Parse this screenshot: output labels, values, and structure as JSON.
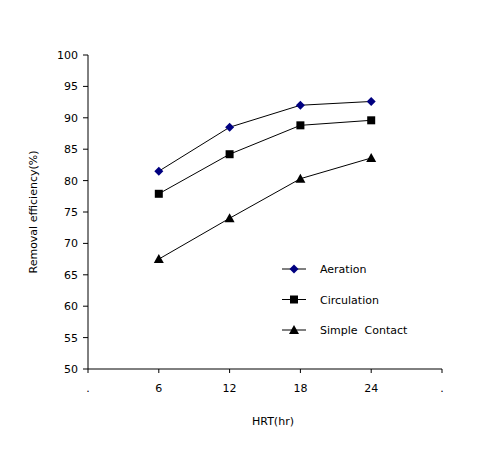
{
  "chart_data": {
    "type": "line",
    "x_label": "HRT(hr)",
    "y_label": "Removal efficiency(%)",
    "x": [
      6,
      12,
      18,
      24
    ],
    "xlim": [
      0,
      30
    ],
    "xticks": [
      {
        "value": 0,
        "label": "."
      },
      6,
      12,
      18,
      24,
      {
        "value": 30,
        "label": "."
      }
    ],
    "ylim": [
      50,
      100
    ],
    "yticks": [
      50,
      55,
      60,
      65,
      70,
      75,
      80,
      85,
      90,
      95,
      100
    ],
    "grid": false,
    "legend": "lower right",
    "series": [
      {
        "name": "Aeration",
        "color": "#000080",
        "marker": "diamond",
        "line_style": "solid",
        "values": [
          81.5,
          88.5,
          92.0,
          92.6
        ]
      },
      {
        "name": "Circulation",
        "color": "#000000",
        "marker": "square",
        "line_style": "solid",
        "values": [
          77.9,
          84.2,
          88.8,
          89.6
        ]
      },
      {
        "name": "Simple  Contact",
        "color": "#000000",
        "marker": "triangle",
        "line_style": "solid",
        "values": [
          67.5,
          74.0,
          80.3,
          83.6
        ]
      }
    ]
  }
}
